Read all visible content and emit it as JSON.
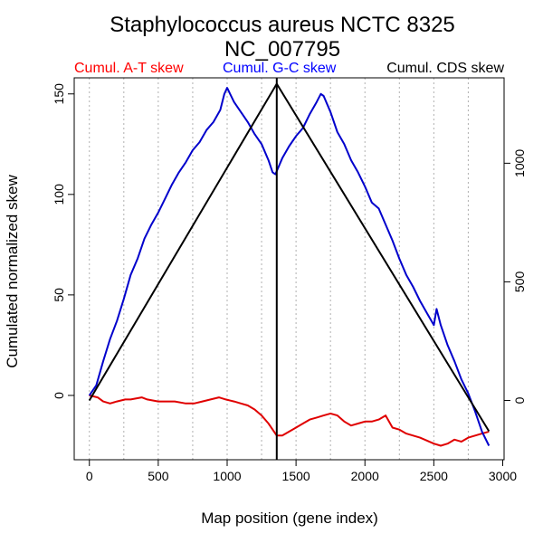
{
  "chart_data": {
    "type": "line",
    "title": "Staphylococcus aureus NCTC 8325",
    "subtitle": "NC_007795",
    "xlabel": "Map position (gene index)",
    "ylabel": "Cumulated normalized skew",
    "xlim": [
      -110,
      3010
    ],
    "ylim": [
      -32,
      158
    ],
    "y2lim": [
      -250,
      1360
    ],
    "grid": "vertical dotted",
    "xticks": [
      0,
      500,
      1000,
      1500,
      2000,
      2500,
      3000
    ],
    "yticks": [
      0,
      50,
      100,
      150
    ],
    "y2ticks": [
      0,
      500,
      1000
    ],
    "xtick_labels": [
      "0",
      "500",
      "1000",
      "1500",
      "2000",
      "2500",
      "3000"
    ],
    "ytick_labels": [
      "0",
      "50",
      "100",
      "150"
    ],
    "y2tick_labels": [
      "0",
      "500",
      "1000"
    ],
    "vline_x": 1360,
    "legend": [
      {
        "label": "Cumul. A-T skew",
        "color": "#ff0000"
      },
      {
        "label": "Cumul. G-C skew",
        "color": "#0000ff"
      },
      {
        "label": "Cumul. CDS skew",
        "color": "#000000"
      }
    ],
    "series": [
      {
        "name": "Cumul. A-T skew",
        "color": "#e00000",
        "axis": "left",
        "x": [
          0,
          60,
          100,
          150,
          200,
          260,
          300,
          380,
          420,
          500,
          560,
          620,
          700,
          760,
          820,
          880,
          940,
          990,
          1050,
          1100,
          1150,
          1200,
          1250,
          1300,
          1360,
          1400,
          1450,
          1500,
          1550,
          1600,
          1650,
          1700,
          1750,
          1800,
          1850,
          1900,
          1950,
          2000,
          2050,
          2100,
          2150,
          2200,
          2250,
          2300,
          2400,
          2500,
          2550,
          2600,
          2650,
          2700,
          2750,
          2800,
          2850,
          2900
        ],
        "y": [
          0,
          -1,
          -3,
          -4,
          -3,
          -2,
          -2,
          -1,
          -2,
          -3,
          -3,
          -3,
          -4,
          -4,
          -3,
          -2,
          -1,
          -2,
          -3,
          -4,
          -5,
          -7,
          -10,
          -14,
          -20,
          -20,
          -18,
          -16,
          -14,
          -12,
          -11,
          -10,
          -9,
          -10,
          -13,
          -15,
          -14,
          -13,
          -13,
          -12,
          -10,
          -16,
          -17,
          -19,
          -21,
          -24,
          -25,
          -24,
          -22,
          -23,
          -21,
          -20,
          -19,
          -18
        ]
      },
      {
        "name": "Cumul. G-C skew",
        "color": "#0000cc",
        "axis": "left",
        "x": [
          0,
          50,
          100,
          150,
          200,
          250,
          300,
          350,
          400,
          450,
          500,
          550,
          600,
          650,
          700,
          750,
          800,
          850,
          900,
          950,
          980,
          1000,
          1050,
          1100,
          1150,
          1200,
          1250,
          1300,
          1330,
          1350,
          1400,
          1450,
          1500,
          1550,
          1600,
          1650,
          1680,
          1700,
          1750,
          1800,
          1850,
          1900,
          1950,
          2000,
          2050,
          2100,
          2150,
          2200,
          2250,
          2300,
          2350,
          2400,
          2450,
          2500,
          2520,
          2550,
          2600,
          2650,
          2700,
          2750,
          2800,
          2850,
          2900
        ],
        "y": [
          0,
          5,
          17,
          28,
          37,
          48,
          60,
          68,
          78,
          85,
          91,
          98,
          105,
          111,
          116,
          122,
          126,
          132,
          136,
          142,
          150,
          153,
          146,
          141,
          136,
          130,
          125,
          117,
          111,
          110,
          118,
          124,
          129,
          133,
          140,
          146,
          150,
          149,
          141,
          131,
          125,
          117,
          111,
          104,
          96,
          93,
          85,
          77,
          68,
          60,
          54,
          47,
          41,
          35,
          43,
          35,
          25,
          17,
          8,
          1,
          -8,
          -18,
          -25
        ]
      },
      {
        "name": "Cumul. CDS skew",
        "color": "#000000",
        "axis": "right",
        "x": [
          0,
          1360,
          2900
        ],
        "y": [
          0,
          1335,
          -130
        ]
      }
    ]
  }
}
